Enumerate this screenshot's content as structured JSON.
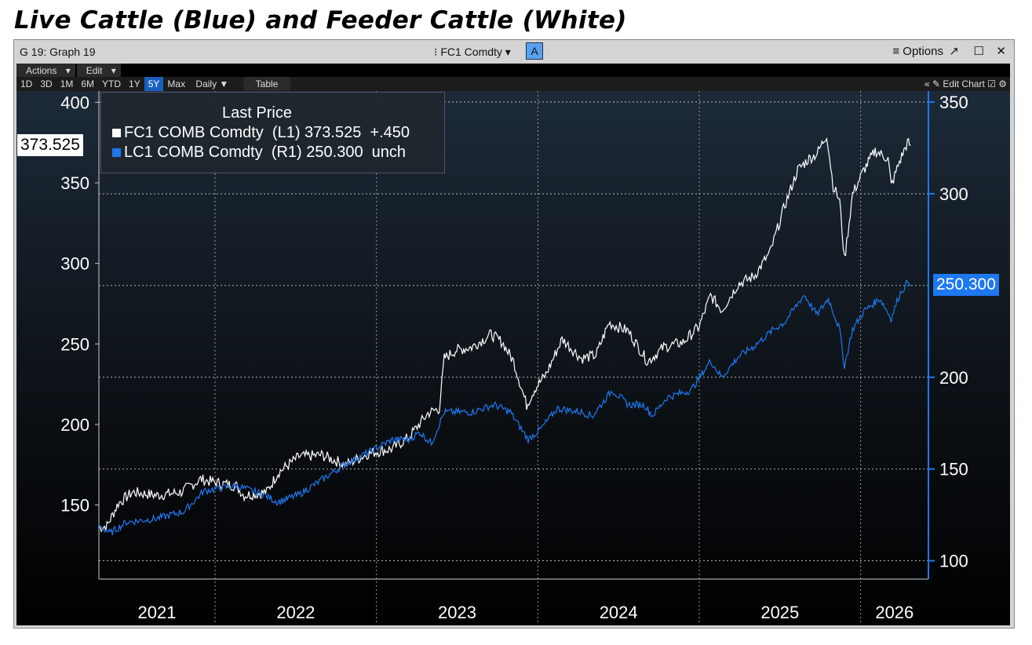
{
  "title": "Live Cattle (Blue) and Feeder Cattle (White)",
  "window": {
    "name": "G 19: Graph 19",
    "security": "FC1 Comdty",
    "a_button": "A",
    "options": "Options",
    "expand_icon": "↗",
    "maximize_icon": "☐",
    "close_icon": "✕",
    "menu_icon": "≡"
  },
  "toolbar": {
    "actions": "Actions",
    "edit": "Edit",
    "ranges": [
      "1D",
      "3D",
      "1M",
      "6M",
      "YTD",
      "1Y",
      "5Y",
      "Max"
    ],
    "selected_range": "5Y",
    "frequency": "Daily ▼",
    "table": "Table",
    "collapse": "«",
    "edit_chart": "Edit Chart"
  },
  "colors": {
    "fc": "#ffffff",
    "lc": "#1e78f0",
    "accent": "#1a5fc0"
  },
  "chart_data": {
    "type": "line",
    "title": "Last Price",
    "x_ticks": [
      "2021",
      "2022",
      "2023",
      "2024",
      "2025",
      "2026"
    ],
    "x_range": [
      2021.28,
      2026.42
    ],
    "left_axis": {
      "ticks": [
        150,
        200,
        250,
        300,
        350,
        400
      ],
      "range": [
        104,
        407
      ]
    },
    "right_axis": {
      "ticks": [
        100,
        150,
        200,
        300,
        350
      ],
      "range": [
        90,
        356
      ]
    },
    "series": [
      {
        "name": "FC1 COMB Comdty",
        "axis": "L1",
        "last": "373.525",
        "change": "+.450",
        "color": "#ffffff",
        "points": [
          [
            2021.28,
            136
          ],
          [
            2021.33,
            137
          ],
          [
            2021.4,
            151
          ],
          [
            2021.49,
            158
          ],
          [
            2021.64,
            156
          ],
          [
            2021.79,
            158
          ],
          [
            2021.91,
            166
          ],
          [
            2022.0,
            164
          ],
          [
            2022.13,
            162
          ],
          [
            2022.18,
            156
          ],
          [
            2022.32,
            158
          ],
          [
            2022.39,
            170
          ],
          [
            2022.52,
            180
          ],
          [
            2022.66,
            181
          ],
          [
            2022.81,
            175
          ],
          [
            2022.95,
            182
          ],
          [
            2023.1,
            185
          ],
          [
            2023.2,
            192
          ],
          [
            2023.32,
            207
          ],
          [
            2023.39,
            210
          ],
          [
            2023.42,
            241
          ],
          [
            2023.49,
            246
          ],
          [
            2023.59,
            248
          ],
          [
            2023.71,
            256
          ],
          [
            2023.78,
            251
          ],
          [
            2023.85,
            239
          ],
          [
            2023.93,
            212
          ],
          [
            2023.98,
            222
          ],
          [
            2024.05,
            231
          ],
          [
            2024.15,
            253
          ],
          [
            2024.27,
            241
          ],
          [
            2024.36,
            243
          ],
          [
            2024.44,
            263
          ],
          [
            2024.56,
            258
          ],
          [
            2024.68,
            239
          ],
          [
            2024.78,
            248
          ],
          [
            2024.9,
            251
          ],
          [
            2025.0,
            261
          ],
          [
            2025.07,
            280
          ],
          [
            2025.14,
            271
          ],
          [
            2025.24,
            287
          ],
          [
            2025.34,
            292
          ],
          [
            2025.44,
            307
          ],
          [
            2025.53,
            336
          ],
          [
            2025.61,
            358
          ],
          [
            2025.68,
            365
          ],
          [
            2025.73,
            368
          ],
          [
            2025.79,
            380
          ],
          [
            2025.83,
            348
          ],
          [
            2025.87,
            339
          ],
          [
            2025.9,
            302
          ],
          [
            2025.95,
            343
          ],
          [
            2026.02,
            358
          ],
          [
            2026.09,
            370
          ],
          [
            2026.17,
            365
          ],
          [
            2026.19,
            348
          ],
          [
            2026.24,
            363
          ],
          [
            2026.29,
            375
          ],
          [
            2026.31,
            373.5
          ]
        ]
      },
      {
        "name": "LC1 COMB Comdty",
        "axis": "R1",
        "last": "250.300",
        "change": "unch",
        "color": "#1e78f0",
        "points": [
          [
            2021.28,
            119
          ],
          [
            2021.35,
            115
          ],
          [
            2021.45,
            121
          ],
          [
            2021.64,
            123
          ],
          [
            2021.81,
            127
          ],
          [
            2021.93,
            138
          ],
          [
            2022.13,
            141
          ],
          [
            2022.3,
            136
          ],
          [
            2022.39,
            132
          ],
          [
            2022.52,
            136
          ],
          [
            2022.66,
            144
          ],
          [
            2022.81,
            153
          ],
          [
            2022.95,
            159
          ],
          [
            2023.1,
            166
          ],
          [
            2023.2,
            166
          ],
          [
            2023.27,
            170
          ],
          [
            2023.34,
            164
          ],
          [
            2023.42,
            181
          ],
          [
            2023.59,
            181
          ],
          [
            2023.73,
            185
          ],
          [
            2023.83,
            181
          ],
          [
            2023.88,
            174
          ],
          [
            2023.94,
            166
          ],
          [
            2024.02,
            172
          ],
          [
            2024.12,
            183
          ],
          [
            2024.27,
            181
          ],
          [
            2024.34,
            179
          ],
          [
            2024.46,
            193
          ],
          [
            2024.56,
            185
          ],
          [
            2024.66,
            185
          ],
          [
            2024.71,
            179
          ],
          [
            2024.8,
            189
          ],
          [
            2024.95,
            193
          ],
          [
            2025.07,
            209
          ],
          [
            2025.14,
            200
          ],
          [
            2025.24,
            211
          ],
          [
            2025.34,
            217
          ],
          [
            2025.46,
            226
          ],
          [
            2025.53,
            230
          ],
          [
            2025.65,
            245
          ],
          [
            2025.73,
            234
          ],
          [
            2025.8,
            243
          ],
          [
            2025.87,
            226
          ],
          [
            2025.9,
            206
          ],
          [
            2025.95,
            226
          ],
          [
            2026.02,
            236
          ],
          [
            2026.12,
            243
          ],
          [
            2026.19,
            232
          ],
          [
            2026.24,
            245
          ],
          [
            2026.3,
            253
          ],
          [
            2026.31,
            250.3
          ]
        ]
      }
    ]
  }
}
